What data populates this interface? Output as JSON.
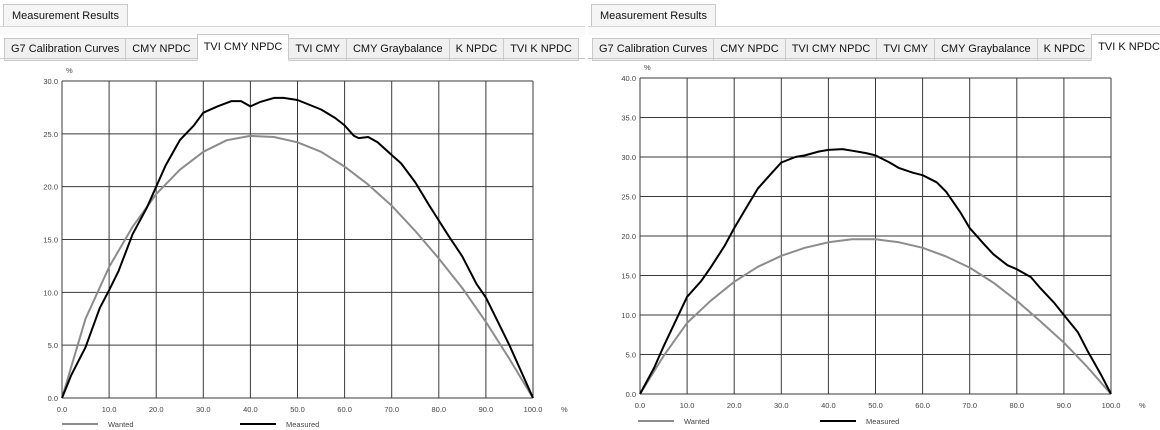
{
  "left_panel": {
    "results_tab": "Measurement Results",
    "tabs": [
      {
        "label": "G7 Calibration Curves",
        "active": false
      },
      {
        "label": "CMY NPDC",
        "active": false
      },
      {
        "label": "TVI CMY NPDC",
        "active": true
      },
      {
        "label": "TVI CMY",
        "active": false
      },
      {
        "label": "CMY Graybalance",
        "active": false
      },
      {
        "label": "K NPDC",
        "active": false
      },
      {
        "label": "TVI K NPDC",
        "active": false
      }
    ]
  },
  "right_panel": {
    "results_tab": "Measurement Results",
    "tabs": [
      {
        "label": "G7 Calibration Curves",
        "active": false
      },
      {
        "label": "CMY NPDC",
        "active": false
      },
      {
        "label": "TVI CMY NPDC",
        "active": false
      },
      {
        "label": "TVI CMY",
        "active": false
      },
      {
        "label": "CMY Graybalance",
        "active": false
      },
      {
        "label": "K NPDC",
        "active": false
      },
      {
        "label": "TVI K NPDC",
        "active": true
      }
    ]
  },
  "chart_data": [
    {
      "type": "line",
      "title": "",
      "y_unit": "%",
      "x_unit": "%",
      "xlim": [
        0,
        100
      ],
      "ylim": [
        0,
        30
      ],
      "x_ticks": [
        "0.0",
        "10.0",
        "20.0",
        "30.0",
        "40.0",
        "50.0",
        "60.0",
        "70.0",
        "80.0",
        "90.0",
        "100.0"
      ],
      "y_ticks": [
        "0.0",
        "5.0",
        "10.0",
        "15.0",
        "20.0",
        "25.0",
        "30.0"
      ],
      "grid": true,
      "legend": "bottom",
      "series": [
        {
          "name": "Wanted",
          "color": "#8c8c8c",
          "x": [
            0,
            5,
            10,
            15,
            20,
            25,
            30,
            35,
            40,
            45,
            50,
            55,
            60,
            65,
            70,
            75,
            80,
            85,
            90,
            95,
            100
          ],
          "y": [
            0,
            7.5,
            12.4,
            16.2,
            19.3,
            21.6,
            23.3,
            24.4,
            24.8,
            24.7,
            24.2,
            23.3,
            21.9,
            20.2,
            18.2,
            15.8,
            13.2,
            10.4,
            7.2,
            3.7,
            0
          ]
        },
        {
          "name": "Measured",
          "color": "#000000",
          "x": [
            0,
            2,
            5,
            8,
            10,
            12,
            15,
            18,
            20,
            22,
            25,
            28,
            30,
            33,
            36,
            38,
            40,
            42,
            45,
            47,
            50,
            55,
            58,
            60,
            62,
            63,
            65,
            67,
            70,
            72,
            75,
            78,
            80,
            82,
            85,
            88,
            90,
            92,
            95,
            98,
            100
          ],
          "y": [
            0,
            2.2,
            4.8,
            8.5,
            10.2,
            12.0,
            15.5,
            18.0,
            20.0,
            22.0,
            24.4,
            25.8,
            27.0,
            27.6,
            28.1,
            28.1,
            27.6,
            28.0,
            28.4,
            28.4,
            28.2,
            27.3,
            26.5,
            25.8,
            24.8,
            24.6,
            24.7,
            24.2,
            23.0,
            22.2,
            20.4,
            18.2,
            16.8,
            15.4,
            13.4,
            10.8,
            9.5,
            7.7,
            5.0,
            2.0,
            0
          ]
        }
      ]
    },
    {
      "type": "line",
      "title": "",
      "y_unit": "%",
      "x_unit": "%",
      "xlim": [
        0,
        100
      ],
      "ylim": [
        0,
        40
      ],
      "x_ticks": [
        "0.0",
        "10.0",
        "20.0",
        "30.0",
        "40.0",
        "50.0",
        "60.0",
        "70.0",
        "80.0",
        "90.0",
        "100.0"
      ],
      "y_ticks": [
        "0.0",
        "5.0",
        "10.0",
        "15.0",
        "20.0",
        "25.0",
        "30.0",
        "35.0",
        "40.0"
      ],
      "grid": true,
      "legend": "bottom",
      "series": [
        {
          "name": "Wanted",
          "color": "#8c8c8c",
          "x": [
            0,
            5,
            10,
            15,
            20,
            25,
            30,
            35,
            40,
            45,
            50,
            55,
            60,
            65,
            70,
            75,
            80,
            85,
            90,
            95,
            100
          ],
          "y": [
            0,
            4.8,
            9.0,
            11.8,
            14.2,
            16.1,
            17.5,
            18.5,
            19.2,
            19.6,
            19.6,
            19.2,
            18.5,
            17.4,
            16.0,
            14.1,
            11.8,
            9.2,
            6.5,
            3.4,
            0
          ]
        },
        {
          "name": "Measured",
          "color": "#000000",
          "x": [
            0,
            3,
            5,
            8,
            10,
            13,
            15,
            18,
            20,
            23,
            25,
            28,
            30,
            33,
            35,
            38,
            40,
            43,
            45,
            48,
            50,
            53,
            55,
            58,
            60,
            63,
            65,
            68,
            70,
            73,
            75,
            78,
            80,
            83,
            85,
            88,
            90,
            93,
            95,
            98,
            100
          ],
          "y": [
            0,
            3.3,
            6.0,
            9.8,
            12.3,
            14.3,
            16.0,
            18.8,
            21.0,
            24.0,
            26.0,
            28.0,
            29.3,
            30.0,
            30.2,
            30.7,
            30.9,
            31.0,
            30.8,
            30.5,
            30.2,
            29.3,
            28.6,
            28.0,
            27.7,
            26.8,
            25.6,
            23.0,
            21.0,
            19.0,
            17.7,
            16.3,
            15.8,
            14.8,
            13.4,
            11.5,
            10.0,
            7.8,
            5.5,
            2.3,
            0
          ]
        }
      ]
    }
  ]
}
